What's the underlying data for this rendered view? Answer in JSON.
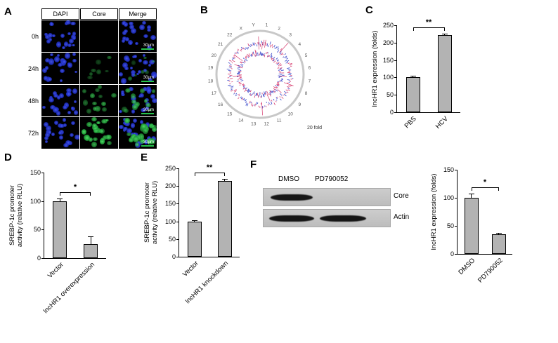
{
  "panels": {
    "A": {
      "label": "A",
      "columns": [
        "DAPI",
        "Core",
        "Merge"
      ],
      "rows": [
        "0h",
        "24h",
        "48h",
        "72h"
      ],
      "scale_bar": "30µm"
    },
    "B": {
      "label": "B",
      "chromosomes": [
        "1",
        "2",
        "3",
        "4",
        "5",
        "6",
        "7",
        "8",
        "9",
        "10",
        "11",
        "12",
        "13",
        "14",
        "15",
        "16",
        "17",
        "18",
        "19",
        "20",
        "21",
        "22",
        "X",
        "Y"
      ],
      "legend": "20 fold"
    },
    "C": {
      "label": "C"
    },
    "D": {
      "label": "D"
    },
    "E": {
      "label": "E"
    },
    "F": {
      "label": "F",
      "blot": {
        "lanes": [
          "DMSO",
          "PD790052"
        ],
        "bands": [
          "Core",
          "Actin"
        ]
      }
    }
  },
  "colors": {
    "bar_fill": "#b3b3b3",
    "dapi_blue": "#2030c8",
    "core_green": "#3ddc5a",
    "circos_red": "#d63b6e",
    "circos_blue": "#3543c8"
  },
  "chart_data": [
    {
      "id": "C",
      "type": "bar",
      "categories": [
        "PBS",
        "HCV"
      ],
      "values": [
        100,
        222
      ],
      "errors": [
        4,
        4
      ],
      "significance": "**",
      "ylabel": "lncHR1 expression (folds)",
      "ylim": [
        0,
        250
      ],
      "yticks": [
        0,
        50,
        100,
        150,
        200,
        250
      ]
    },
    {
      "id": "D",
      "type": "bar",
      "categories": [
        "Vector",
        "lncHR1 overexpression"
      ],
      "values": [
        100,
        25
      ],
      "errors": [
        5,
        13
      ],
      "significance": "*",
      "ylabel": "SREBP-1c promoter\nactivity (relative RLU)",
      "ylim": [
        0,
        150
      ],
      "yticks": [
        0,
        50,
        100,
        150
      ]
    },
    {
      "id": "E",
      "type": "bar",
      "categories": [
        "Vector",
        "lncHR1 knockdown"
      ],
      "values": [
        100,
        215
      ],
      "errors": [
        3,
        5
      ],
      "significance": "**",
      "ylabel": "SREBP-1c promoter\nactivity (relative RLU)",
      "ylim": [
        0,
        250
      ],
      "yticks": [
        0,
        50,
        100,
        150,
        200,
        250
      ]
    },
    {
      "id": "F",
      "type": "bar",
      "categories": [
        "DMSO",
        "PD790052"
      ],
      "values": [
        100,
        35
      ],
      "errors": [
        7,
        2
      ],
      "significance": "*",
      "ylabel": "lncHR1 expression (folds)",
      "ylim": [
        0,
        150
      ],
      "yticks": [
        0,
        50,
        100,
        150
      ]
    }
  ]
}
